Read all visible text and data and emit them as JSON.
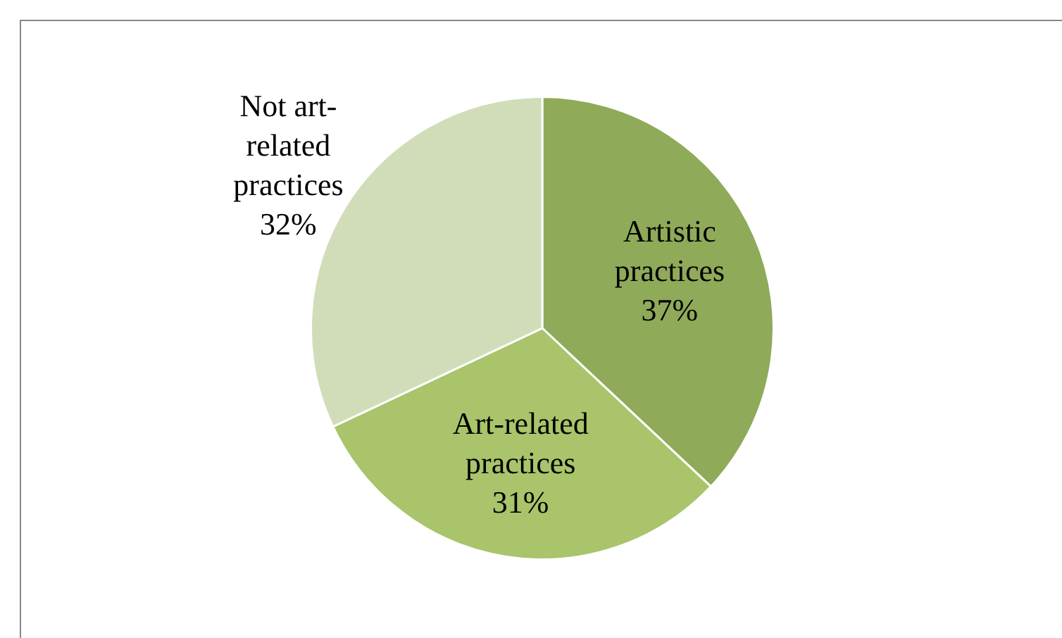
{
  "chart_data": {
    "type": "pie",
    "categories": [
      "Artistic practices",
      "Art-related practices",
      "Not art-related practices"
    ],
    "values": [
      37,
      31,
      32
    ],
    "colors": [
      "#8faa58",
      "#a9c46a",
      "#d1ddb9"
    ],
    "value_labels": [
      "37%",
      "31%",
      "32%"
    ],
    "legend": false
  }
}
